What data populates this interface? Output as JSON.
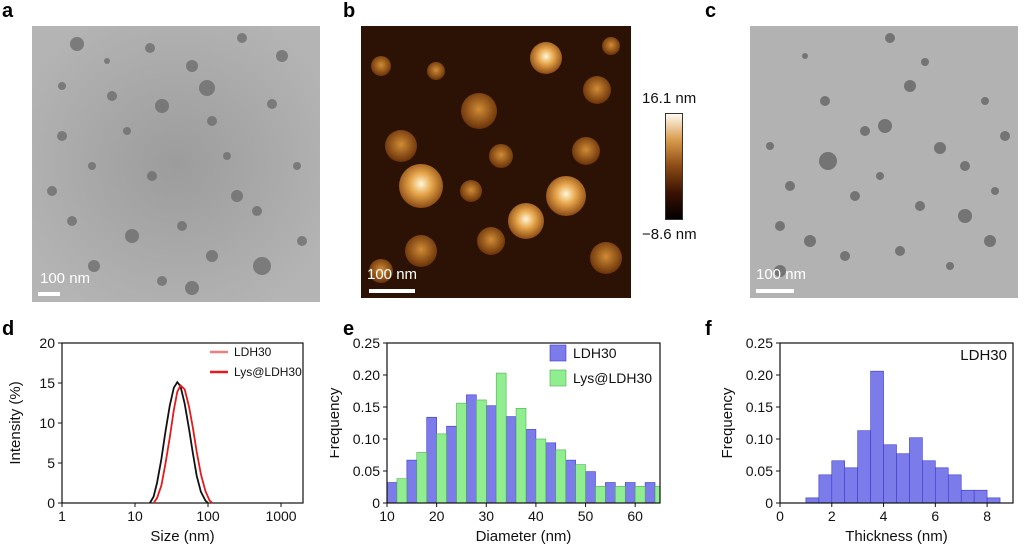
{
  "panels": {
    "a": {
      "letter": "a",
      "scalebar_label": "100 nm"
    },
    "b": {
      "letter": "b",
      "scalebar_label": "100 nm",
      "colorbar_max": "16.1 nm",
      "colorbar_min": "−8.6 nm"
    },
    "c": {
      "letter": "c",
      "scalebar_label": "100 nm"
    },
    "d": {
      "letter": "d"
    },
    "e": {
      "letter": "e"
    },
    "f": {
      "letter": "f"
    }
  },
  "colors": {
    "ldh30_line": "#f08080",
    "lys_line": "#e41a1c",
    "black_line": "#111111",
    "bar_blue": "#7b7bea",
    "bar_green": "#90ee90",
    "bar_edge": "#3a3acc"
  },
  "chart_data": [
    {
      "id": "d",
      "type": "line",
      "xlabel": "Size (nm)",
      "ylabel": "Intensity (%)",
      "xscale": "log",
      "xlim": [
        1,
        2000
      ],
      "ylim": [
        0,
        20
      ],
      "xticks": [
        1,
        10,
        100,
        1000
      ],
      "xtick_labels": [
        "1",
        "10",
        "100",
        "1000"
      ],
      "yticks": [
        0,
        5,
        10,
        15,
        20
      ],
      "ytick_labels": [
        "0",
        "5",
        "10",
        "15",
        "20"
      ],
      "legend_position": "top-right",
      "legend": [
        "LDH30",
        "Lys@LDH30"
      ],
      "series": [
        {
          "name": "LDH30",
          "x": [
            16,
            18,
            20,
            23,
            26,
            30,
            34,
            38,
            42,
            48,
            55,
            62,
            70,
            80,
            92,
            100
          ],
          "y": [
            0,
            0.8,
            2.5,
            5.5,
            8.8,
            12.2,
            14.4,
            15.1,
            14.6,
            12.4,
            9.2,
            6.2,
            3.4,
            1.4,
            0.3,
            0
          ]
        },
        {
          "name": "Lys@LDH30",
          "x": [
            18,
            20,
            23,
            26,
            30,
            34,
            38,
            42,
            48,
            55,
            62,
            70,
            80,
            92,
            105,
            115
          ],
          "y": [
            0,
            0.6,
            2.2,
            4.8,
            8.2,
            11.6,
            13.9,
            14.7,
            14.2,
            12.0,
            9.4,
            6.4,
            3.6,
            1.5,
            0.3,
            0
          ]
        }
      ]
    },
    {
      "id": "e",
      "type": "bar",
      "xlabel": "Diameter (nm)",
      "ylabel": "Frequency",
      "xlim": [
        10,
        65
      ],
      "ylim": [
        0,
        0.25
      ],
      "xticks": [
        10,
        20,
        30,
        40,
        50,
        60
      ],
      "xtick_labels": [
        "10",
        "20",
        "30",
        "40",
        "50",
        "60"
      ],
      "yticks": [
        0,
        0.05,
        0.1,
        0.15,
        0.2,
        0.25
      ],
      "ytick_labels": [
        "0",
        "0.05",
        "0.10",
        "0.15",
        "0.20",
        "0.25"
      ],
      "legend_position": "top-right",
      "bin_width": 2,
      "series": [
        {
          "name": "LDH30",
          "x": [
            11,
            15,
            19,
            23,
            27,
            31,
            35,
            39,
            43,
            47,
            51,
            55,
            59,
            63
          ],
          "values": [
            0.032,
            0.067,
            0.134,
            0.12,
            0.169,
            0.152,
            0.135,
            0.115,
            0.094,
            0.067,
            0.049,
            0.032,
            0.032,
            0.032
          ]
        },
        {
          "name": "Lys@LDH30",
          "x": [
            13,
            17,
            21,
            25,
            29,
            33,
            37,
            41,
            45,
            49,
            53,
            57,
            61,
            65
          ],
          "values": [
            0.038,
            0.079,
            0.108,
            0.156,
            0.161,
            0.203,
            0.148,
            0.1,
            0.083,
            0.06,
            0.026,
            0.026,
            0.026,
            0.026
          ]
        }
      ]
    },
    {
      "id": "f",
      "type": "bar",
      "xlabel": "Thickness (nm)",
      "ylabel": "Frequency",
      "annotation": "LDH30",
      "xlim": [
        0,
        9
      ],
      "ylim": [
        0,
        0.25
      ],
      "xticks": [
        0,
        2,
        4,
        6,
        8
      ],
      "xtick_labels": [
        "0",
        "2",
        "4",
        "6",
        "8"
      ],
      "yticks": [
        0,
        0.05,
        0.1,
        0.15,
        0.2,
        0.25
      ],
      "ytick_labels": [
        "0",
        "0.05",
        "0.10",
        "0.15",
        "0.20",
        "0.25"
      ],
      "bin_width": 0.5,
      "series": [
        {
          "name": "LDH30",
          "x": [
            1.25,
            1.75,
            2.25,
            2.75,
            3.25,
            3.75,
            4.25,
            4.75,
            5.25,
            5.75,
            6.25,
            6.75,
            7.25,
            7.75,
            8.25
          ],
          "values": [
            0.008,
            0.044,
            0.066,
            0.055,
            0.113,
            0.206,
            0.091,
            0.077,
            0.102,
            0.066,
            0.055,
            0.044,
            0.02,
            0.02,
            0.008
          ]
        }
      ]
    }
  ]
}
